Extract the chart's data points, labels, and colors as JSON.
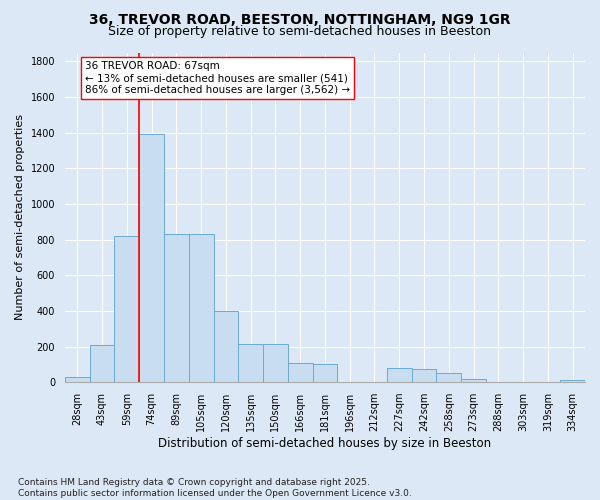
{
  "title1": "36, TREVOR ROAD, BEESTON, NOTTINGHAM, NG9 1GR",
  "title2": "Size of property relative to semi-detached houses in Beeston",
  "xlabel": "Distribution of semi-detached houses by size in Beeston",
  "ylabel": "Number of semi-detached properties",
  "bins": [
    "28sqm",
    "43sqm",
    "59sqm",
    "74sqm",
    "89sqm",
    "105sqm",
    "120sqm",
    "135sqm",
    "150sqm",
    "166sqm",
    "181sqm",
    "196sqm",
    "212sqm",
    "227sqm",
    "242sqm",
    "258sqm",
    "273sqm",
    "288sqm",
    "303sqm",
    "319sqm",
    "334sqm"
  ],
  "values": [
    30,
    210,
    820,
    1390,
    830,
    830,
    400,
    215,
    215,
    110,
    100,
    0,
    0,
    80,
    75,
    50,
    20,
    0,
    0,
    0,
    15
  ],
  "bar_color": "#c9ddf0",
  "bar_edge_color": "#6aaad4",
  "vline_x_index": 2.5,
  "vline_color": "red",
  "annotation_text": "36 TREVOR ROAD: 67sqm\n← 13% of semi-detached houses are smaller (541)\n86% of semi-detached houses are larger (3,562) →",
  "annotation_box_color": "white",
  "annotation_box_edge_color": "red",
  "footer": "Contains HM Land Registry data © Crown copyright and database right 2025.\nContains public sector information licensed under the Open Government Licence v3.0.",
  "ylim": [
    0,
    1850
  ],
  "yticks": [
    0,
    200,
    400,
    600,
    800,
    1000,
    1200,
    1400,
    1600,
    1800
  ],
  "background_color": "#dce8f5",
  "plot_bg_color": "#dce8f5",
  "grid_color": "white",
  "title1_fontsize": 10,
  "title2_fontsize": 9,
  "annotation_fontsize": 7.5,
  "footer_fontsize": 6.5,
  "ylabel_fontsize": 8,
  "xlabel_fontsize": 8.5,
  "tick_fontsize": 7
}
